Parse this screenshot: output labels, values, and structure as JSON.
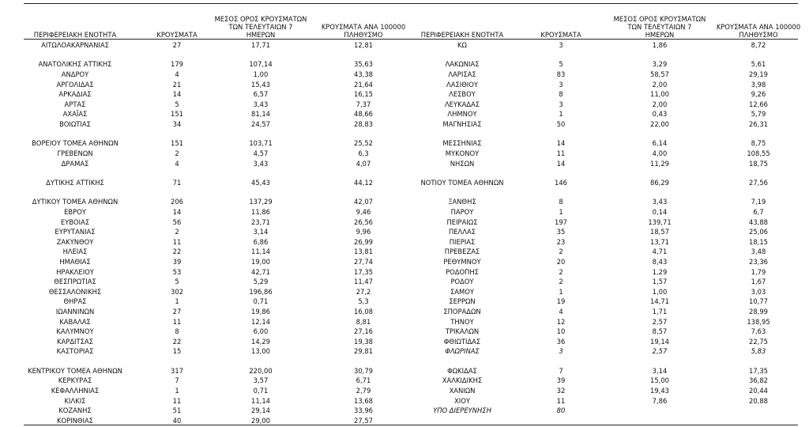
{
  "left": {
    "header": [
      "ΠΕΡΙΦΕΡΕΙΑΚΗ ΕΝΟΤΗΤΑ",
      "ΚΡΟΥΣΜΑΤΑ",
      [
        "ΜΕΣΟΣ ΟΡΟΣ ΚΡΟΥΣΜΑΤΩΝ",
        "ΤΩΝ ΤΕΛΕΥΤΑΙΩΝ 7",
        "ΗΜΕΡΩΝ"
      ],
      [
        "ΚΡΟΥΣΜΑΤΑ ΑΝΑ 100000",
        "ΠΛΗΘΥΣΜΟ"
      ]
    ],
    "groups": [
      [
        [
          "ΑΙΤΩΛΟΑΚΑΡΝΑΝΙΑΣ",
          "27",
          "17,71",
          "12,81"
        ]
      ],
      [
        [
          "ΑΝΑΤΟΛΙΚΗΣ ΑΤΤΙΚΗΣ",
          "179",
          "107,14",
          "35,63"
        ],
        [
          "ΑΝΔΡΟΥ",
          "4",
          "1,00",
          "43,38"
        ],
        [
          "ΑΡΓΟΛΙΔΑΣ",
          "21",
          "15,43",
          "21,64"
        ],
        [
          "ΑΡΚΑΔΙΑΣ",
          "14",
          "6,57",
          "16,15"
        ],
        [
          "ΑΡΤΑΣ",
          "5",
          "3,43",
          "7,37"
        ],
        [
          "ΑΧΑΪΑΣ",
          "151",
          "81,14",
          "48,66"
        ],
        [
          "ΒΟΙΩΤΙΑΣ",
          "34",
          "24,57",
          "28,83"
        ]
      ],
      [
        [
          "ΒΟΡΕΙΟΥ ΤΟΜΕΑ ΑΘΗΝΩΝ",
          "151",
          "103,71",
          "25,52"
        ],
        [
          "ΓΡΕΒΕΝΩΝ",
          "2",
          "4,57",
          "6,3"
        ],
        [
          "ΔΡΑΜΑΣ",
          "4",
          "3,43",
          "4,07"
        ]
      ],
      [
        [
          "ΔΥΤΙΚΗΣ ΑΤΤΙΚΗΣ",
          "71",
          "45,43",
          "44,12"
        ]
      ],
      [
        [
          "ΔΥΤΙΚΟΥ ΤΟΜΕΑ ΑΘΗΝΩΝ",
          "206",
          "137,29",
          "42,07"
        ],
        [
          "ΕΒΡΟΥ",
          "14",
          "11,86",
          "9,46"
        ],
        [
          "ΕΥΒΟΙΑΣ",
          "56",
          "23,71",
          "26,56"
        ],
        [
          "ΕΥΡΥΤΑΝΙΑΣ",
          "2",
          "3,14",
          "9,96"
        ],
        [
          "ΖΑΚΥΝΘΟΥ",
          "11",
          "6,86",
          "26,99"
        ],
        [
          "ΗΛΕΙΑΣ",
          "22",
          "11,14",
          "13,81"
        ],
        [
          "ΗΜΑΘΙΑΣ",
          "39",
          "19,00",
          "27,74"
        ],
        [
          "ΗΡΑΚΛΕΙΟΥ",
          "53",
          "42,71",
          "17,35"
        ],
        [
          "ΘΕΣΠΡΩΤΙΑΣ",
          "5",
          "5,29",
          "11,47"
        ],
        [
          "ΘΕΣΣΑΛΟΝΙΚΗΣ",
          "302",
          "196,86",
          "27,2"
        ],
        [
          "ΘΗΡΑΣ",
          "1",
          "0,71",
          "5,3"
        ],
        [
          "ΙΩΑΝΝΙΝΩΝ",
          "27",
          "19,86",
          "16,08"
        ],
        [
          "ΚΑΒΑΛΑΣ",
          "11",
          "12,14",
          "8,81"
        ],
        [
          "ΚΑΛΥΜΝΟΥ",
          "8",
          "6,00",
          "27,16"
        ],
        [
          "ΚΑΡΔΙΤΣΑΣ",
          "22",
          "14,29",
          "19,38"
        ],
        [
          "ΚΑΣΤΟΡΙΑΣ",
          "15",
          "13,00",
          "29,81"
        ]
      ],
      [
        [
          "ΚΕΝΤΡΙΚΟΥ ΤΟΜΕΑ ΑΘΗΝΩΝ",
          "317",
          "220,00",
          "30,79"
        ],
        [
          "ΚΕΡΚΥΡΑΣ",
          "7",
          "3,57",
          "6,71"
        ],
        [
          "ΚΕΦΑΛΛΗΝΙΑΣ",
          "1",
          "0,71",
          "2,79"
        ],
        [
          "ΚΙΛΚΙΣ",
          "11",
          "11,14",
          "13,68"
        ],
        [
          "ΚΟΖΑΝΗΣ",
          "51",
          "29,14",
          "33,96"
        ],
        [
          "ΚΟΡΙΝΘΙΑΣ",
          "40",
          "29,00",
          "27,57"
        ]
      ]
    ]
  },
  "right": {
    "header": [
      "ΠΕΡΙΦΕΡΕΙΑΚΗ ΕΝΟΤΗΤΑ",
      "ΚΡΟΥΣΜΑΤΑ",
      [
        "ΜΕΣΟΣ ΟΡΟΣ ΚΡΟΥΣΜΑΤΩΝ",
        "ΤΩΝ ΤΕΛΕΥΤΑΙΩΝ 7",
        "ΗΜΕΡΩΝ"
      ],
      [
        "ΚΡΟΥΣΜΑΤΑ ΑΝΑ 100000",
        "ΠΛΗΘΥΣΜΟ"
      ]
    ],
    "groups": [
      [
        [
          "ΚΩ",
          "3",
          "1,86",
          "8,72"
        ]
      ],
      [
        [
          "ΛΑΚΩΝΙΑΣ",
          "5",
          "3,29",
          "5,61"
        ],
        [
          "ΛΑΡΙΣΑΣ",
          "83",
          "58,57",
          "29,19"
        ],
        [
          "ΛΑΣΙΘΙΟΥ",
          "3",
          "2,00",
          "3,98"
        ],
        [
          "ΛΕΣΒΟΥ",
          "8",
          "11,00",
          "9,26"
        ],
        [
          "ΛΕΥΚΑΔΑΣ",
          "3",
          "2,00",
          "12,66"
        ],
        [
          "ΛΗΜΝΟΥ",
          "1",
          "0,43",
          "5,79"
        ],
        [
          "ΜΑΓΝΗΣΙΑΣ",
          "50",
          "22,00",
          "26,31"
        ]
      ],
      [
        [
          "ΜΕΣΣΗΝΙΑΣ",
          "14",
          "6,14",
          "8,75"
        ],
        [
          "ΜΥΚΟΝΟΥ",
          "11",
          "4,00",
          "108,55"
        ],
        [
          "ΝΗΣΩΝ",
          "14",
          "11,29",
          "18,75"
        ]
      ],
      [
        [
          "ΝΟΤΙΟΥ ΤΟΜΕΑ ΑΘΗΝΩΝ",
          "146",
          "86,29",
          "27,56"
        ]
      ],
      [
        [
          "ΞΑΝΘΗΣ",
          "8",
          "3,43",
          "7,19"
        ],
        [
          "ΠΑΡΟΥ",
          "1",
          "0,14",
          "6,7"
        ],
        [
          "ΠΕΙΡΑΙΩΣ",
          "197",
          "139,71",
          "43,88"
        ],
        [
          "ΠΕΛΛΑΣ",
          "35",
          "18,57",
          "25,06"
        ],
        [
          "ΠΙΕΡΙΑΣ",
          "23",
          "13,71",
          "18,15"
        ],
        [
          "ΠΡΕΒΕΖΑΣ",
          "2",
          "4,71",
          "3,48"
        ],
        [
          "ΡΕΘΥΜΝΟΥ",
          "20",
          "8,43",
          "23,36"
        ],
        [
          "ΡΟΔΟΠΗΣ",
          "2",
          "1,29",
          "1,79"
        ],
        [
          "ΡΟΔΟΥ",
          "2",
          "1,57",
          "1,67"
        ],
        [
          "ΣΑΜΟΥ",
          "1",
          "1,00",
          "3,03"
        ],
        [
          "ΣΕΡΡΩΝ",
          "19",
          "14,71",
          "10,77"
        ],
        [
          "ΣΠΟΡΑΔΩΝ",
          "4",
          "1,71",
          "28,99"
        ],
        [
          "ΤΗΝΟΥ",
          "12",
          "2,57",
          "138,95"
        ],
        [
          "ΤΡΙΚΑΛΩΝ",
          "10",
          "8,57",
          "7,63"
        ],
        [
          "ΦΘΙΩΤΙΔΑΣ",
          "36",
          "19,14",
          "22,75"
        ],
        [
          "ΦΛΩΡΙΝΑΣ",
          "3",
          "2,57",
          "5,83"
        ]
      ],
      [
        [
          "ΦΩΚΙΔΑΣ",
          "7",
          "3,14",
          "17,35"
        ],
        [
          "ΧΑΛΚΙΔΙΚΗΣ",
          "39",
          "15,00",
          "36,82"
        ],
        [
          "ΧΑΝΙΩΝ",
          "32",
          "19,43",
          "20,44"
        ],
        [
          "ΧΙΟΥ",
          "11",
          "7,86",
          "20,88"
        ],
        [
          "ΥΠΟ ΔΙΕΡΕΥΝΗΣΗ",
          "80"
        ]
      ]
    ]
  }
}
